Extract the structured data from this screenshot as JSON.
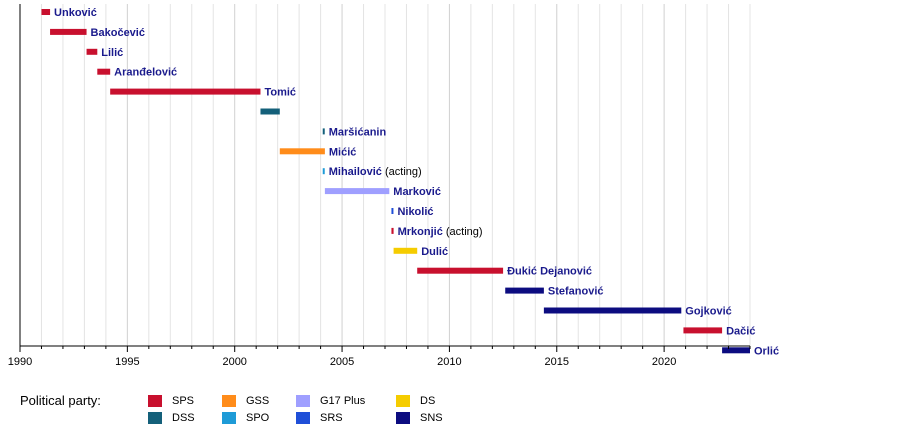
{
  "chart_data": {
    "type": "timeline",
    "title": "",
    "xlabel": "",
    "ylabel": "",
    "xlim": [
      1990,
      2024
    ],
    "x_ticks": [
      1990,
      1995,
      2000,
      2005,
      2010,
      2015,
      2020
    ],
    "grid": true,
    "bars": [
      {
        "name": "Unković",
        "note": "",
        "start": 1991.0,
        "end": 1991.4,
        "party": "SPS"
      },
      {
        "name": "Bakočević",
        "note": "",
        "start": 1991.4,
        "end": 1993.1,
        "party": "SPS"
      },
      {
        "name": "Lilić",
        "note": "",
        "start": 1993.1,
        "end": 1993.6,
        "party": "SPS"
      },
      {
        "name": "Aranđelović",
        "note": "",
        "start": 1993.6,
        "end": 1994.2,
        "party": "SPS"
      },
      {
        "name": "Tomić",
        "note": "",
        "start": 1994.2,
        "end": 2001.2,
        "party": "SPS"
      },
      {
        "name": "",
        "note": "",
        "start": 2001.2,
        "end": 2002.1,
        "party": "DSS"
      },
      {
        "name": "Maršićanin",
        "note": "",
        "start": 2004.1,
        "end": 2004.15,
        "party": "DSS"
      },
      {
        "name": "Mićić",
        "note": "",
        "start": 2002.1,
        "end": 2004.2,
        "party": "GSS"
      },
      {
        "name": "Mihailović",
        "note": "(acting)",
        "start": 2004.1,
        "end": 2004.15,
        "party": "SPO"
      },
      {
        "name": "Marković",
        "note": "",
        "start": 2004.2,
        "end": 2007.2,
        "party": "G17 Plus"
      },
      {
        "name": "Nikolić",
        "note": "",
        "start": 2007.3,
        "end": 2007.35,
        "party": "SRS"
      },
      {
        "name": "Mrkonjić",
        "note": "(acting)",
        "start": 2007.3,
        "end": 2007.4,
        "party": "SPS"
      },
      {
        "name": "Dulić",
        "note": "",
        "start": 2007.4,
        "end": 2008.5,
        "party": "DS"
      },
      {
        "name": "Đukić Dejanović",
        "note": "",
        "start": 2008.5,
        "end": 2012.5,
        "party": "SPS"
      },
      {
        "name": "Stefanović",
        "note": "",
        "start": 2012.6,
        "end": 2014.4,
        "party": "SNS"
      },
      {
        "name": "Gojković",
        "note": "",
        "start": 2014.4,
        "end": 2020.8,
        "party": "SNS"
      },
      {
        "name": "Dačić",
        "note": "",
        "start": 2020.9,
        "end": 2022.7,
        "party": "SPS"
      },
      {
        "name": "Orlić",
        "note": "",
        "start": 2022.7,
        "end": 2024.0,
        "party": "SNS"
      }
    ],
    "legend": {
      "title": "Political party:",
      "placement": "bottom-left",
      "items": [
        {
          "party": "SPS",
          "color": "#c8102e"
        },
        {
          "party": "DSS",
          "color": "#14607a"
        },
        {
          "party": "GSS",
          "color": "#ff8c1a"
        },
        {
          "party": "SPO",
          "color": "#1e9bd7"
        },
        {
          "party": "G17 Plus",
          "color": "#9f9fff"
        },
        {
          "party": "SRS",
          "color": "#1f4fd8"
        },
        {
          "party": "DS",
          "color": "#f5cc00"
        },
        {
          "party": "SNS",
          "color": "#0c0c80"
        }
      ]
    }
  }
}
